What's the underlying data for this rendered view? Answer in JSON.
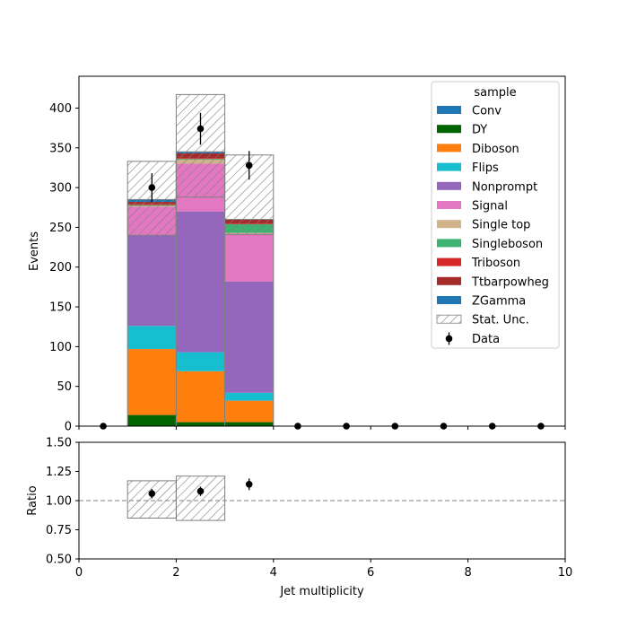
{
  "chart_data": {
    "type": "bar",
    "xlabel": "Jet multiplicity",
    "ylabel_top": "Events",
    "ylabel_bottom": "Ratio",
    "xlim": [
      0,
      10
    ],
    "ylim_top": [
      0,
      440
    ],
    "ylim_bottom": [
      0.5,
      1.5
    ],
    "xticks": [
      "0",
      "2",
      "4",
      "6",
      "8",
      "10"
    ],
    "yticks_top": [
      "0",
      "50",
      "100",
      "150",
      "200",
      "250",
      "300",
      "350",
      "400"
    ],
    "yticks_bottom": [
      "0.50",
      "0.75",
      "1.00",
      "1.25",
      "1.50"
    ],
    "bins": [
      [
        1,
        2
      ],
      [
        2,
        3
      ],
      [
        3,
        4
      ]
    ],
    "legend_title": "sample",
    "legend_position": "upper right",
    "series": [
      {
        "name": "Conv",
        "color": "#1f77b4",
        "values": [
          0,
          0,
          0
        ]
      },
      {
        "name": "DY",
        "color": "#006400",
        "values": [
          14,
          5,
          5
        ]
      },
      {
        "name": "Diboson",
        "color": "#ff7f0e",
        "values": [
          83,
          64,
          27
        ]
      },
      {
        "name": "Flips",
        "color": "#17becf",
        "values": [
          29,
          24,
          10
        ]
      },
      {
        "name": "Nonprompt",
        "color": "#9467bd",
        "values": [
          114,
          177,
          140
        ]
      },
      {
        "name": "Signal",
        "color": "#e377c2",
        "values": [
          36,
          60,
          60
        ]
      },
      {
        "name": "Single top",
        "color": "#d2b48c",
        "values": [
          1,
          5,
          1
        ]
      },
      {
        "name": "Singleboson",
        "color": "#3cb371",
        "values": [
          1,
          1,
          11
        ]
      },
      {
        "name": "Triboson",
        "color": "#d62728",
        "values": [
          1,
          1,
          1
        ]
      },
      {
        "name": "Ttbarpowheg",
        "color": "#a52a2a",
        "values": [
          3,
          6,
          5
        ]
      },
      {
        "name": "ZGamma",
        "color": "#1f77b4",
        "values": [
          3,
          2,
          0
        ]
      }
    ],
    "stat_unc": {
      "name": "Stat. Unc.",
      "low": [
        240,
        288,
        241
      ],
      "high": [
        333,
        417,
        341
      ]
    },
    "data": {
      "name": "Data",
      "x": [
        0.5,
        1.5,
        2.5,
        3.5,
        4.5,
        5.5,
        6.5,
        7.5,
        8.5,
        9.5
      ],
      "y": [
        0,
        300,
        374,
        328,
        0,
        0,
        0,
        0,
        0,
        0
      ],
      "err": [
        0,
        18,
        20,
        18,
        0,
        0,
        0,
        0,
        0,
        0
      ]
    },
    "ratio": {
      "x": [
        1.5,
        2.5,
        3.5
      ],
      "y": [
        1.06,
        1.08,
        1.14
      ],
      "err": [
        0.04,
        0.04,
        0.05
      ],
      "band_low": [
        0.85,
        0.83,
        null
      ],
      "band_high": [
        1.17,
        1.21,
        null
      ]
    },
    "ratio_reference": 1.0
  }
}
